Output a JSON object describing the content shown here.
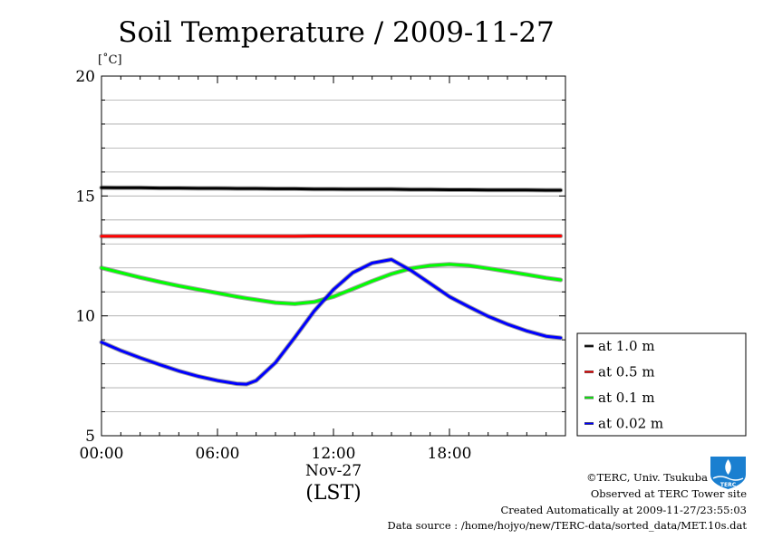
{
  "chart_data": {
    "type": "line",
    "title": "Soil Temperature / 2009-11-27",
    "ylabel": "[˚C]",
    "ylim": [
      5,
      20
    ],
    "yticks": [
      "5",
      "10",
      "15",
      "20"
    ],
    "xlim": [
      0,
      24
    ],
    "xticks": [
      "00:00",
      "06:00",
      "12:00",
      "18:00"
    ],
    "xtick_values": [
      0,
      6,
      12,
      18
    ],
    "date_label": "Nov-27",
    "xlabel": "(LST)",
    "grid": true,
    "legend_position": "right",
    "x": [
      0,
      1,
      2,
      3,
      4,
      5,
      6,
      7,
      7.5,
      8,
      9,
      10,
      11,
      12,
      13,
      14,
      15,
      16,
      17,
      18,
      19,
      20,
      21,
      22,
      23,
      23.75
    ],
    "series": [
      {
        "name": "at 1.0 m",
        "color": "#000000",
        "values": [
          15.35,
          15.34,
          15.34,
          15.33,
          15.33,
          15.32,
          15.32,
          15.31,
          15.31,
          15.31,
          15.3,
          15.3,
          15.29,
          15.29,
          15.28,
          15.28,
          15.28,
          15.27,
          15.27,
          15.26,
          15.26,
          15.25,
          15.25,
          15.25,
          15.24,
          15.24
        ]
      },
      {
        "name": "at 0.5 m",
        "color": "#ff0000",
        "values": [
          13.32,
          13.32,
          13.32,
          13.32,
          13.32,
          13.32,
          13.32,
          13.32,
          13.32,
          13.32,
          13.32,
          13.32,
          13.33,
          13.33,
          13.33,
          13.33,
          13.33,
          13.33,
          13.33,
          13.33,
          13.33,
          13.33,
          13.33,
          13.33,
          13.33,
          13.33
        ]
      },
      {
        "name": "at 0.1 m",
        "color": "#00ff00",
        "values": [
          12.0,
          11.8,
          11.6,
          11.42,
          11.25,
          11.1,
          10.95,
          10.8,
          10.73,
          10.67,
          10.55,
          10.5,
          10.58,
          10.8,
          11.12,
          11.45,
          11.75,
          11.98,
          12.1,
          12.15,
          12.1,
          11.98,
          11.85,
          11.72,
          11.58,
          11.5
        ]
      },
      {
        "name": "at 0.02 m",
        "color": "#0000ff",
        "values": [
          8.9,
          8.55,
          8.25,
          7.97,
          7.7,
          7.48,
          7.3,
          7.17,
          7.15,
          7.3,
          8.05,
          9.1,
          10.2,
          11.1,
          11.8,
          12.2,
          12.35,
          11.9,
          11.35,
          10.8,
          10.38,
          9.98,
          9.65,
          9.37,
          9.15,
          9.08
        ]
      }
    ]
  },
  "footer": {
    "credit": "©TERC, Univ. Tsukuba",
    "site": "Observed at TERC Tower site",
    "created": "Created Automatically at 2009-11-27/23:55:03",
    "source": "Data source : /home/hojyo/new/TERC-data/sorted_data/MET.10s.dat",
    "logo_text": "TERC"
  }
}
